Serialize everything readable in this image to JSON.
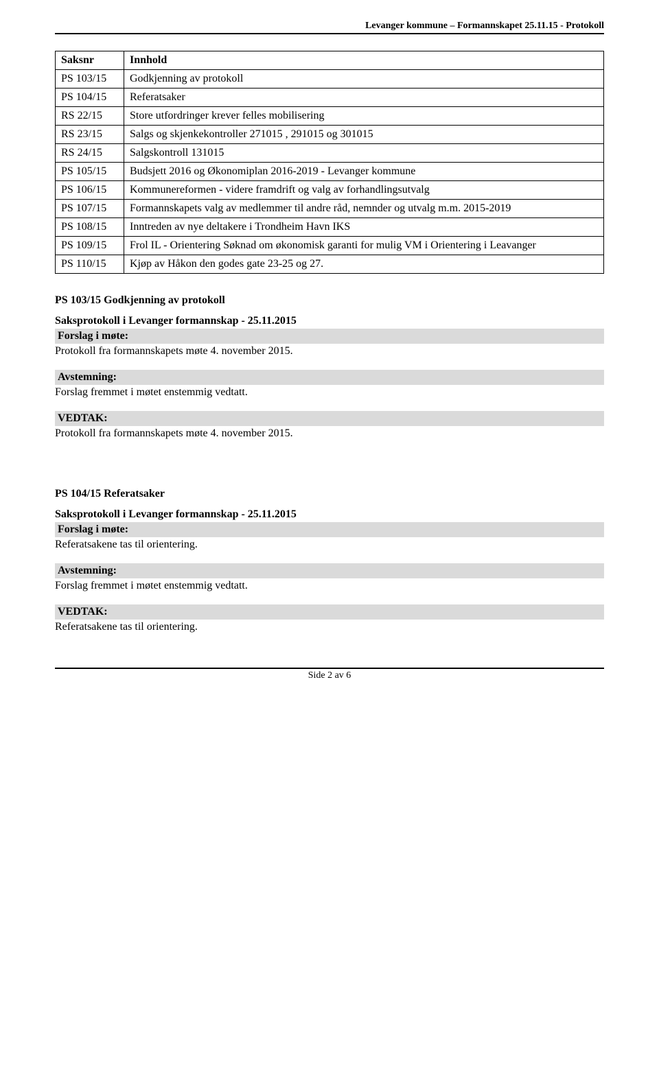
{
  "header": {
    "text": "Levanger kommune – Formannskapet 25.11.15 - Protokoll"
  },
  "table": {
    "columns": [
      "Saksnr",
      "Innhold"
    ],
    "rows": [
      {
        "saksnr": "PS 103/15",
        "innhold": "Godkjenning av protokoll"
      },
      {
        "saksnr": "PS 104/15",
        "innhold": "Referatsaker"
      },
      {
        "saksnr": "RS 22/15",
        "innhold": "Store utfordringer krever felles mobilisering"
      },
      {
        "saksnr": "RS 23/15",
        "innhold": "Salgs og skjenkekontroller 271015 , 291015 og 301015"
      },
      {
        "saksnr": "RS 24/15",
        "innhold": "Salgskontroll 131015"
      },
      {
        "saksnr": "PS 105/15",
        "innhold": "Budsjett 2016 og  Økonomiplan 2016-2019 - Levanger kommune"
      },
      {
        "saksnr": "PS 106/15",
        "innhold": "Kommunereformen - videre framdrift og valg av forhandlingsutvalg"
      },
      {
        "saksnr": "PS 107/15",
        "innhold": "Formannskapets valg av medlemmer til andre råd, nemnder og utvalg m.m. 2015-2019"
      },
      {
        "saksnr": "PS 108/15",
        "innhold": "Inntreden av nye deltakere i Trondheim Havn IKS"
      },
      {
        "saksnr": "PS 109/15",
        "innhold": "Frol IL - Orientering Søknad om økonomisk garanti for mulig VM i Orientering i Leavanger"
      },
      {
        "saksnr": "PS 110/15",
        "innhold": "Kjøp av Håkon den godes gate 23-25 og 27."
      }
    ]
  },
  "section103": {
    "heading": "PS 103/15 Godkjenning av protokoll",
    "proto_title": "Saksprotokoll i Levanger formannskap - 25.11.2015",
    "forslag_label": "Forslag i møte:",
    "forslag_text": "Protokoll fra formannskapets møte 4. november 2015.",
    "avstemning_label": "Avstemning:",
    "avstemning_text": "Forslag fremmet i møtet enstemmig vedtatt.",
    "vedtak_label": "VEDTAK:",
    "vedtak_text": "Protokoll fra formannskapets møte 4. november 2015."
  },
  "section104": {
    "heading": "PS 104/15 Referatsaker",
    "proto_title": "Saksprotokoll i Levanger formannskap - 25.11.2015",
    "forslag_label": "Forslag i møte:",
    "forslag_text": "Referatsakene tas til orientering.",
    "avstemning_label": "Avstemning:",
    "avstemning_text": "Forslag fremmet i møtet enstemmig vedtatt.",
    "vedtak_label": "VEDTAK:",
    "vedtak_text": "Referatsakene tas til orientering."
  },
  "footer": {
    "text": "Side 2 av 6"
  },
  "colors": {
    "gray_bar": "#dadada",
    "text": "#000000",
    "background": "#ffffff",
    "border": "#000000"
  }
}
